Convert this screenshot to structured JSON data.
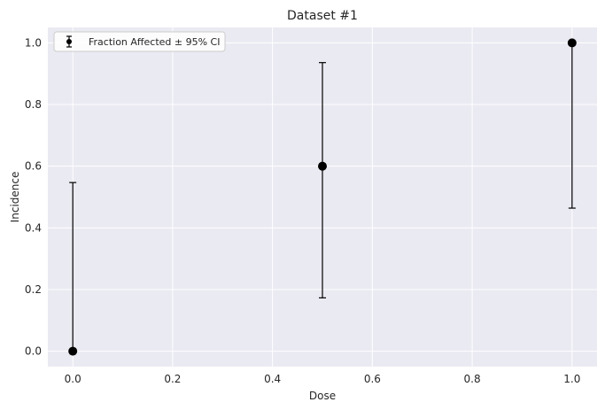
{
  "chart_data": {
    "type": "scatter",
    "title": "Dataset #1",
    "xlabel": "Dose",
    "ylabel": "Incidence",
    "xlim": [
      -0.05,
      1.05
    ],
    "ylim": [
      -0.05,
      1.05
    ],
    "x_ticks": [
      0.0,
      0.2,
      0.4,
      0.6,
      0.8,
      1.0
    ],
    "x_tick_labels": [
      "0.0",
      "0.2",
      "0.4",
      "0.6",
      "0.8",
      "1.0"
    ],
    "y_ticks": [
      0.0,
      0.2,
      0.4,
      0.6,
      0.8,
      1.0
    ],
    "y_tick_labels": [
      "0.0",
      "0.2",
      "0.4",
      "0.6",
      "0.8",
      "1.0"
    ],
    "grid": true,
    "legend_position": "top-left",
    "series": [
      {
        "name": "Fraction Affected ± 95% CI",
        "color": "#000000",
        "x": [
          0.0,
          0.5,
          1.0
        ],
        "y": [
          0.0,
          0.6,
          1.0
        ],
        "ci_lower": [
          0.0,
          0.173,
          0.464
        ],
        "ci_upper": [
          0.547,
          0.936,
          1.0
        ]
      }
    ],
    "colors": {
      "plot_background": "#eaeaf2",
      "grid": "#ffffff",
      "marker": "#000000"
    }
  }
}
